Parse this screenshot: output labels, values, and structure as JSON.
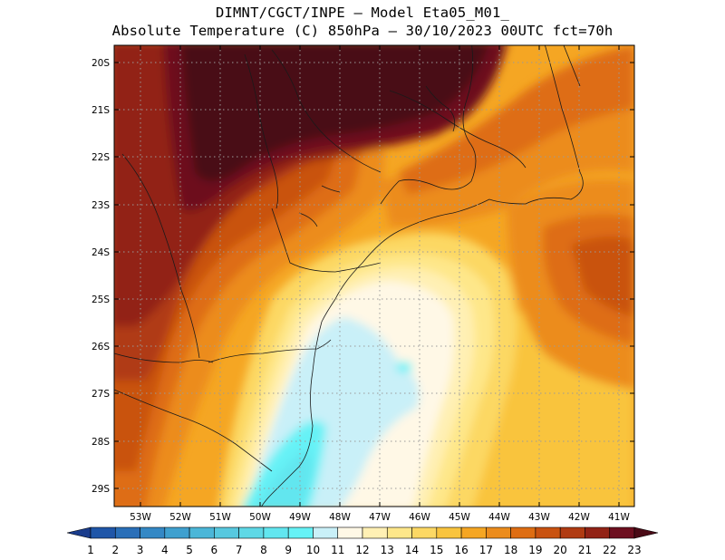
{
  "title_line1": "DIMNT/CGCT/INPE —  Model Eta05_M01_",
  "title_line2": "Absolute Temperature (C) 850hPa —  30/10/2023 00UTC fct=70h",
  "lat_labels": [
    "20S",
    "21S",
    "22S",
    "23S",
    "24S",
    "25S",
    "26S",
    "27S",
    "28S",
    "29S"
  ],
  "lon_labels": [
    "53W",
    "52W",
    "51W",
    "50W",
    "49W",
    "48W",
    "47W",
    "46W",
    "45W",
    "44W",
    "43W",
    "42W",
    "41W"
  ],
  "colorbar": {
    "labels": [
      "1",
      "2",
      "3",
      "4",
      "5",
      "6",
      "7",
      "8",
      "9",
      "10",
      "11",
      "12",
      "13",
      "14",
      "15",
      "16",
      "17",
      "18",
      "19",
      "20",
      "21",
      "22",
      "23"
    ],
    "colors": [
      "#1a3c8c",
      "#1f56a8",
      "#2a6fb8",
      "#3488c5",
      "#3fa0cf",
      "#4bb6d8",
      "#57c8df",
      "#5ed8e6",
      "#62e6ef",
      "#66f2f6",
      "#c9f0f8",
      "#fff8e6",
      "#fff0b4",
      "#fee78a",
      "#fcd864",
      "#f9c43e",
      "#f5a623",
      "#ec8c1c",
      "#de6d12",
      "#c95210",
      "#b03b12",
      "#922316",
      "#6d0f1f",
      "#4a0a16"
    ]
  },
  "chart_data": {
    "type": "heatmap",
    "title": "Absolute Temperature (C) 850hPa",
    "lat_range": [
      "29.4S",
      "19.7S"
    ],
    "lon_range": [
      "53.4W",
      "40.6W"
    ],
    "levels": [
      1,
      2,
      3,
      4,
      5,
      6,
      7,
      8,
      9,
      10,
      11,
      12,
      13,
      14,
      15,
      16,
      17,
      18,
      19,
      20,
      21,
      22,
      23
    ],
    "units": "C",
    "grid": true
  }
}
